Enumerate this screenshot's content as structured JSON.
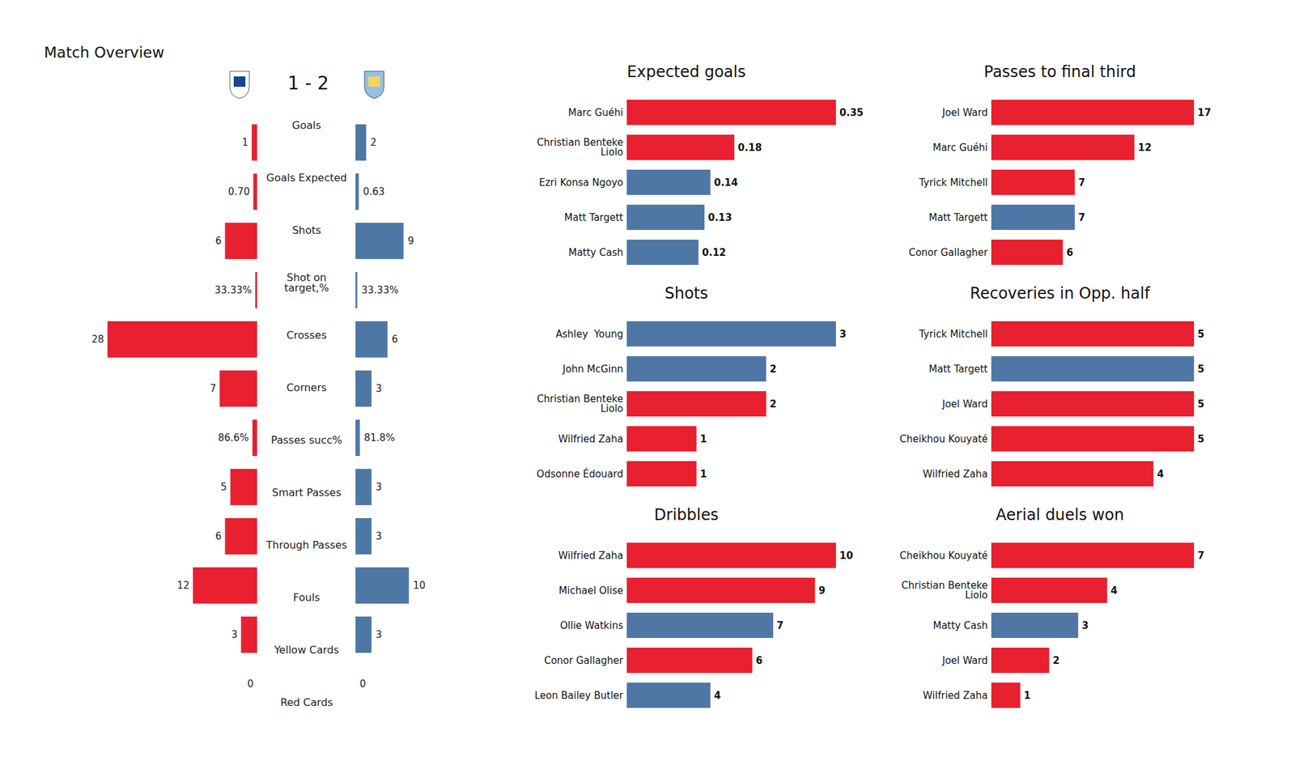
{
  "chart_data": [
    {
      "type": "bar",
      "orientation": "horizontal",
      "title": "Match Overview",
      "subtitle": "1 - 2",
      "categories": [
        "Goals",
        "Goals Expected",
        "Shots",
        "Shot on\ntarget,%",
        "Crosses",
        "Corners",
        "Passes succ%",
        "Smart Passes",
        "Through Passes",
        "Fouls",
        "Yellow Cards",
        "Red Cards"
      ],
      "series": [
        {
          "color": "#e8202f",
          "values": [
            1,
            0.7,
            6,
            0.3333,
            28,
            7,
            0.866,
            5,
            6,
            12,
            3,
            0
          ],
          "value_labels": [
            "1",
            "0.70",
            "6",
            "33.33%",
            "28",
            "7",
            "86.6%",
            "5",
            "6",
            "12",
            "3",
            "0"
          ]
        },
        {
          "color": "#4e77a6",
          "values": [
            2,
            0.63,
            9,
            0.3333,
            6,
            3,
            0.818,
            3,
            3,
            10,
            3,
            0
          ],
          "value_labels": [
            "2",
            "0.63",
            "9",
            "33.33%",
            "6",
            "3",
            "81.8%",
            "3",
            "3",
            "10",
            "3",
            "0"
          ]
        }
      ],
      "xlim": [
        0,
        28
      ],
      "data_labels": true,
      "tick_labels": "y"
    },
    {
      "type": "bar",
      "orientation": "horizontal",
      "title": "Expected goals",
      "categories": [
        "Marc Guéhi",
        "Christian Benteke\nLiolo",
        "Ezri Konsa Ngoyo",
        "Matt Targett",
        "Matty Cash"
      ],
      "values": [
        0.35,
        0.18,
        0.14,
        0.13,
        0.12
      ],
      "colors": [
        "#e8202f",
        "#e8202f",
        "#4e77a6",
        "#4e77a6",
        "#4e77a6"
      ],
      "xlim": [
        0,
        0.35
      ],
      "data_labels": true,
      "tick_labels": "y"
    },
    {
      "type": "bar",
      "orientation": "horizontal",
      "title": "Passes to final third",
      "categories": [
        "Joel Ward",
        "Marc Guéhi",
        "Tyrick Mitchell",
        "Matt Targett",
        "Conor Gallagher"
      ],
      "values": [
        17,
        12,
        7,
        7,
        6
      ],
      "colors": [
        "#e8202f",
        "#e8202f",
        "#e8202f",
        "#4e77a6",
        "#e8202f"
      ],
      "xlim": [
        0,
        17
      ],
      "data_labels": true,
      "tick_labels": "y"
    },
    {
      "type": "bar",
      "orientation": "horizontal",
      "title": "Shots",
      "categories": [
        "Ashley  Young",
        "John McGinn",
        "Christian Benteke\nLiolo",
        "Wilfried Zaha",
        "Odsonne Édouard"
      ],
      "values": [
        3,
        2,
        2,
        1,
        1
      ],
      "colors": [
        "#4e77a6",
        "#4e77a6",
        "#e8202f",
        "#e8202f",
        "#e8202f"
      ],
      "xlim": [
        0,
        3
      ],
      "data_labels": true,
      "tick_labels": "y"
    },
    {
      "type": "bar",
      "orientation": "horizontal",
      "title": "Recoveries in Opp. half",
      "categories": [
        "Tyrick Mitchell",
        "Matt Targett",
        "Joel Ward",
        "Cheikhou Kouyaté",
        "Wilfried Zaha"
      ],
      "values": [
        5,
        5,
        5,
        5,
        4
      ],
      "colors": [
        "#e8202f",
        "#4e77a6",
        "#e8202f",
        "#e8202f",
        "#e8202f"
      ],
      "xlim": [
        0,
        5
      ],
      "data_labels": true,
      "tick_labels": "y"
    },
    {
      "type": "bar",
      "orientation": "horizontal",
      "title": "Dribbles",
      "categories": [
        "Wilfried Zaha",
        "Michael Olise",
        "Ollie Watkins",
        "Conor Gallagher",
        "Leon Bailey Butler"
      ],
      "values": [
        10,
        9,
        7,
        6,
        4
      ],
      "colors": [
        "#e8202f",
        "#e8202f",
        "#4e77a6",
        "#e8202f",
        "#4e77a6"
      ],
      "xlim": [
        0,
        10
      ],
      "data_labels": true,
      "tick_labels": "y"
    },
    {
      "type": "bar",
      "orientation": "horizontal",
      "title": "Aerial duels won",
      "categories": [
        "Cheikhou Kouyaté",
        "Christian Benteke\nLiolo",
        "Matty Cash",
        "Joel Ward",
        "Wilfried Zaha"
      ],
      "values": [
        7,
        4,
        3,
        2,
        1
      ],
      "colors": [
        "#e8202f",
        "#e8202f",
        "#4e77a6",
        "#e8202f",
        "#e8202f"
      ],
      "xlim": [
        0,
        7
      ],
      "data_labels": true,
      "tick_labels": "y"
    }
  ]
}
